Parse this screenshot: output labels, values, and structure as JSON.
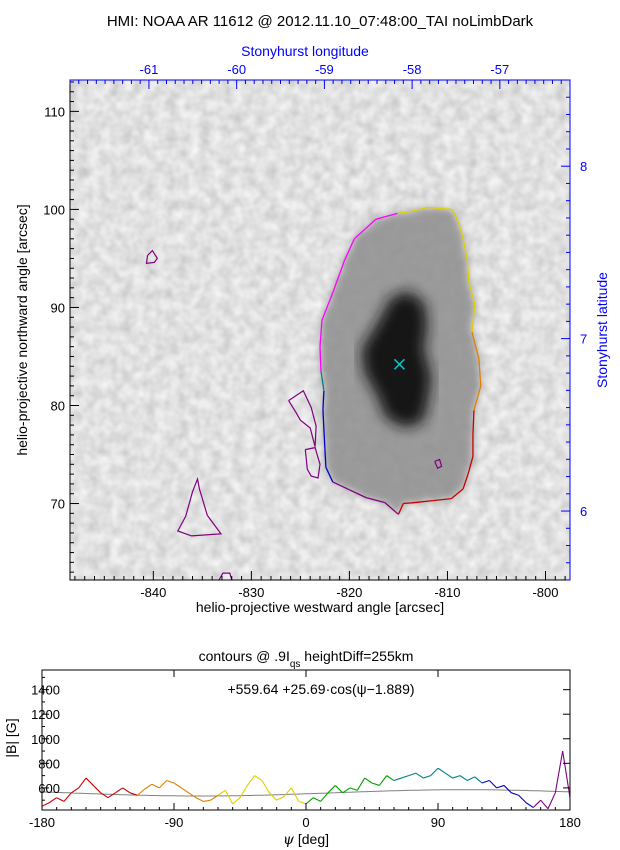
{
  "page_title": "HMI: NOAA AR 11612 @ 2012.11.10_07:48:00_TAI noLimbDark",
  "colors": {
    "axis_blue": "#0000ff",
    "marker": "#00c8c8",
    "fit_line": "#808080"
  },
  "chart_data": [
    {
      "type": "heatmap",
      "xlabel": "helio-projective westward angle [arcsec]",
      "ylabel": "helio-projective northward angle [arcsec]",
      "top_axis_label": "Stonyhurst longitude",
      "right_axis_label": "Stonyhurst latitude",
      "xlim": [
        -848.5,
        -797.5
      ],
      "ylim": [
        62.2,
        113.2
      ],
      "x_ticks": [
        -840,
        -830,
        -820,
        -810,
        -800
      ],
      "y_ticks": [
        70,
        80,
        90,
        100,
        110
      ],
      "top_ticks": [
        -61,
        -60,
        -59,
        -58,
        -57
      ],
      "right_ticks": [
        6,
        7,
        8
      ],
      "center_marker": {
        "x": -814.9,
        "y": 84.2
      },
      "sunspot_contour": [
        [
          -812.0,
          100.2
        ],
        [
          -809.5,
          100.0
        ],
        [
          -808.8,
          98.5
        ],
        [
          -808.4,
          97.0
        ],
        [
          -808.0,
          95.0
        ],
        [
          -807.8,
          92.5
        ],
        [
          -807.2,
          90.3
        ],
        [
          -807.5,
          87.5
        ],
        [
          -806.8,
          84.8
        ],
        [
          -806.6,
          82.0
        ],
        [
          -807.3,
          79.5
        ],
        [
          -807.4,
          77.0
        ],
        [
          -807.4,
          74.8
        ],
        [
          -807.9,
          73.0
        ],
        [
          -808.4,
          71.5
        ],
        [
          -809.6,
          70.5
        ],
        [
          -811.5,
          70.3
        ],
        [
          -813.3,
          70.1
        ],
        [
          -814.5,
          70.0
        ],
        [
          -815.0,
          68.9
        ],
        [
          -816.4,
          70.1
        ],
        [
          -818.3,
          70.6
        ],
        [
          -820.0,
          71.4
        ],
        [
          -821.7,
          72.2
        ],
        [
          -822.4,
          73.7
        ],
        [
          -822.5,
          75.6
        ],
        [
          -822.6,
          77.5
        ],
        [
          -822.7,
          79.6
        ],
        [
          -822.6,
          81.5
        ],
        [
          -822.9,
          83.5
        ],
        [
          -823.0,
          86.0
        ],
        [
          -822.8,
          88.7
        ],
        [
          -821.7,
          91.5
        ],
        [
          -820.5,
          94.8
        ],
        [
          -819.5,
          97.0
        ],
        [
          -817.3,
          99.0
        ],
        [
          -815.1,
          99.6
        ],
        [
          -813.7,
          99.8
        ],
        [
          -812.0,
          100.2
        ]
      ],
      "small_contours": [
        [
          [
            -840.6,
            95.3
          ],
          [
            -840.1,
            95.8
          ],
          [
            -839.6,
            95.0
          ],
          [
            -839.9,
            94.6
          ],
          [
            -840.7,
            94.5
          ],
          [
            -840.6,
            95.3
          ]
        ],
        [
          [
            -826.2,
            80.5
          ],
          [
            -824.7,
            81.5
          ],
          [
            -823.9,
            79.8
          ],
          [
            -823.4,
            77.9
          ],
          [
            -823.5,
            75.8
          ],
          [
            -824.0,
            77.7
          ],
          [
            -825.0,
            78.5
          ],
          [
            -825.4,
            79.2
          ],
          [
            -826.2,
            80.5
          ]
        ],
        [
          [
            -824.5,
            75.5
          ],
          [
            -823.5,
            75.7
          ],
          [
            -823.0,
            74.0
          ],
          [
            -823.2,
            72.6
          ],
          [
            -823.9,
            72.8
          ],
          [
            -824.3,
            73.5
          ],
          [
            -824.5,
            75.5
          ]
        ],
        [
          [
            -836.0,
            71.2
          ],
          [
            -835.5,
            72.5
          ],
          [
            -835.3,
            71.5
          ],
          [
            -834.5,
            68.8
          ],
          [
            -833.1,
            66.9
          ],
          [
            -836.1,
            66.7
          ],
          [
            -837.5,
            67.2
          ],
          [
            -836.7,
            68.7
          ],
          [
            -836.0,
            71.2
          ]
        ],
        [
          [
            -833.3,
            62.2
          ],
          [
            -832.9,
            62.9
          ],
          [
            -832.2,
            62.9
          ],
          [
            -832.0,
            62.2
          ]
        ],
        [
          [
            -811.3,
            74.3
          ],
          [
            -810.8,
            74.5
          ],
          [
            -810.6,
            73.8
          ],
          [
            -811.0,
            73.6
          ],
          [
            -811.3,
            74.3
          ]
        ]
      ],
      "dark_core": [
        [
          -814.0,
          91.7
        ],
        [
          -812.3,
          90.5
        ],
        [
          -812.0,
          88.0
        ],
        [
          -812.4,
          85.8
        ],
        [
          -811.6,
          83.0
        ],
        [
          -812.0,
          80.0
        ],
        [
          -812.5,
          78.3
        ],
        [
          -814.4,
          77.7
        ],
        [
          -816.3,
          78.7
        ],
        [
          -817.2,
          81.0
        ],
        [
          -818.5,
          83.3
        ],
        [
          -818.8,
          85.7
        ],
        [
          -817.0,
          88.7
        ],
        [
          -815.8,
          91.0
        ],
        [
          -814.0,
          91.7
        ]
      ]
    },
    {
      "type": "line",
      "title_main": "contours @ .9I",
      "title_sub": "qs",
      "title_rest": " heightDiff=255km",
      "fit_label": "+559.64  +25.69·cos(ψ−1.889)",
      "xlabel_symbol": "ψ",
      "xlabel_unit": " [deg]",
      "ylabel": "|B| [G]",
      "xlim": [
        -180,
        180
      ],
      "ylim": [
        420,
        1560
      ],
      "x_ticks": [
        -180,
        -90,
        0,
        90,
        180
      ],
      "y_ticks": [
        600,
        800,
        1000,
        1200,
        1400
      ],
      "fit": {
        "offset": 559.64,
        "amplitude": 25.69,
        "phase_rad": 1.889
      },
      "x": [
        -180,
        -175,
        -170,
        -165,
        -160,
        -155,
        -150,
        -145,
        -140,
        -135,
        -130,
        -125,
        -120,
        -115,
        -110,
        -105,
        -100,
        -95,
        -90,
        -85,
        -80,
        -75,
        -70,
        -65,
        -60,
        -55,
        -50,
        -45,
        -40,
        -35,
        -30,
        -25,
        -20,
        -15,
        -10,
        -5,
        0,
        5,
        10,
        15,
        20,
        25,
        30,
        35,
        40,
        45,
        50,
        55,
        60,
        65,
        70,
        75,
        80,
        85,
        90,
        95,
        100,
        105,
        110,
        115,
        120,
        125,
        130,
        135,
        140,
        145,
        150,
        155,
        160,
        165,
        170,
        175,
        180
      ],
      "values": [
        450,
        480,
        520,
        490,
        560,
        600,
        680,
        620,
        560,
        520,
        560,
        600,
        560,
        540,
        590,
        630,
        600,
        660,
        640,
        600,
        560,
        520,
        490,
        500,
        540,
        580,
        470,
        520,
        620,
        700,
        660,
        560,
        500,
        530,
        600,
        490,
        470,
        520,
        490,
        560,
        620,
        560,
        600,
        580,
        680,
        640,
        620,
        700,
        660,
        680,
        700,
        720,
        680,
        700,
        760,
        720,
        680,
        700,
        660,
        690,
        640,
        660,
        600,
        620,
        560,
        540,
        480,
        440,
        500,
        430,
        560,
        900,
        520
      ]
    }
  ]
}
